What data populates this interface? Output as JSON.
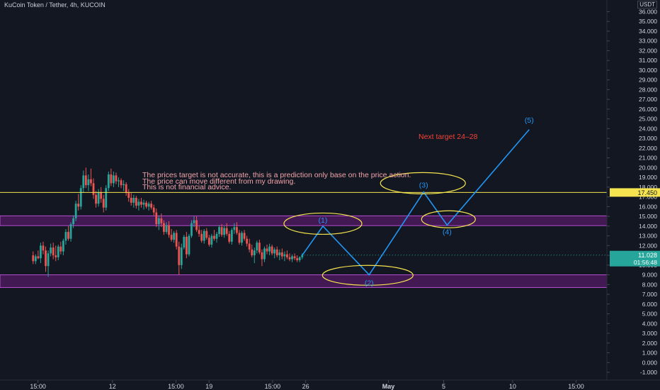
{
  "header": {
    "title": "KuCoin Token / Tether, 4h, KUCOIN",
    "currency": "USDT"
  },
  "annotations": {
    "disclaimer": [
      "The prices target is not accurate, this is a prediction only base on the price action.",
      "The price can move different from my drawing.",
      "This is not financial advice."
    ],
    "next_target": "Next target 24–28",
    "wave_labels": [
      "(1)",
      "(2)",
      "(3)",
      "(4)",
      "(5)"
    ]
  },
  "price_labels": {
    "resistance": "17.450",
    "current": "11.028",
    "countdown": "01:56:48"
  },
  "colors": {
    "background": "#131722",
    "up": "#26a69a",
    "down": "#ef5350",
    "zone": "#6a1b7a",
    "resistance_line": "#f5e44f",
    "forecast": "#2196f3",
    "note_text": "#f0a3a8",
    "target_text": "#f44336",
    "ellipse": "#f5e44f",
    "text": "#d1d4dc"
  },
  "chart_data": {
    "type": "candlestick",
    "y_axis": {
      "ticks": [
        "36.000",
        "35.000",
        "34.000",
        "33.000",
        "32.000",
        "31.000",
        "30.000",
        "29.000",
        "28.000",
        "27.000",
        "26.000",
        "25.000",
        "24.000",
        "23.000",
        "22.000",
        "21.000",
        "20.000",
        "19.000",
        "18.000",
        "17.000",
        "16.000",
        "15.000",
        "14.000",
        "13.000",
        "12.000",
        "11.000",
        "10.000",
        "9.000",
        "8.000",
        "7.000",
        "6.000",
        "5.000",
        "4.000",
        "3.000",
        "2.000",
        "1.000",
        "0.000",
        "-1.000"
      ],
      "top_cut_label": "3",
      "range": [
        -1.8,
        37.2
      ]
    },
    "x_axis": {
      "labels": [
        "15:00",
        "12",
        "15:00",
        "19",
        "15:00",
        "26",
        "May",
        "5",
        "10",
        "15:00"
      ],
      "bold_labels": [
        "May"
      ],
      "positions_days": [
        0.6,
        6,
        10.6,
        13,
        17.6,
        20,
        26,
        30,
        35,
        39.6
      ],
      "range_days": [
        -2.15,
        41.83
      ]
    },
    "zones": [
      [
        14.05,
        15.05
      ],
      [
        7.7,
        9.0
      ]
    ],
    "resistance_line": 17.45,
    "last_price": 11.028,
    "wave_forecast": {
      "points": [
        {
          "label": "",
          "day": 19.75,
          "price": 11.0
        },
        {
          "label": "(1)",
          "day": 21.25,
          "price": 14.0
        },
        {
          "label": "(2)",
          "day": 24.6,
          "price": 9.0
        },
        {
          "label": "(3)",
          "day": 28.55,
          "price": 17.5
        },
        {
          "label": "(4)",
          "day": 30.25,
          "price": 14.1
        },
        {
          "label": "(5)",
          "day": 36.2,
          "price": 23.9
        }
      ]
    },
    "candles": [
      {
        "o": 11.0,
        "h": 11.4,
        "l": 10.1,
        "c": 10.4
      },
      {
        "o": 10.4,
        "h": 11.1,
        "l": 10.1,
        "c": 10.9
      },
      {
        "o": 10.9,
        "h": 11.5,
        "l": 10.6,
        "c": 10.7
      },
      {
        "o": 10.7,
        "h": 12.3,
        "l": 10.2,
        "c": 12.0
      },
      {
        "o": 12.0,
        "h": 12.4,
        "l": 11.1,
        "c": 11.5
      },
      {
        "o": 11.5,
        "h": 11.9,
        "l": 9.3,
        "c": 9.9
      },
      {
        "o": 9.9,
        "h": 11.5,
        "l": 8.8,
        "c": 11.2
      },
      {
        "o": 11.2,
        "h": 12.2,
        "l": 10.9,
        "c": 11.8
      },
      {
        "o": 11.8,
        "h": 12.3,
        "l": 10.6,
        "c": 11.0
      },
      {
        "o": 11.0,
        "h": 12.0,
        "l": 10.4,
        "c": 10.8
      },
      {
        "o": 10.8,
        "h": 12.1,
        "l": 10.5,
        "c": 11.9
      },
      {
        "o": 11.9,
        "h": 12.4,
        "l": 11.1,
        "c": 11.4
      },
      {
        "o": 11.4,
        "h": 12.7,
        "l": 11.0,
        "c": 12.5
      },
      {
        "o": 12.5,
        "h": 13.7,
        "l": 12.1,
        "c": 13.4
      },
      {
        "o": 13.4,
        "h": 14.0,
        "l": 12.5,
        "c": 12.7
      },
      {
        "o": 12.7,
        "h": 14.4,
        "l": 12.4,
        "c": 14.2
      },
      {
        "o": 14.2,
        "h": 15.1,
        "l": 13.8,
        "c": 14.8
      },
      {
        "o": 14.8,
        "h": 16.6,
        "l": 14.5,
        "c": 16.3
      },
      {
        "o": 16.3,
        "h": 17.3,
        "l": 15.6,
        "c": 16.0
      },
      {
        "o": 16.0,
        "h": 18.2,
        "l": 15.7,
        "c": 17.9
      },
      {
        "o": 17.9,
        "h": 19.7,
        "l": 17.4,
        "c": 19.2
      },
      {
        "o": 19.2,
        "h": 20.0,
        "l": 17.9,
        "c": 18.2
      },
      {
        "o": 18.2,
        "h": 19.3,
        "l": 17.6,
        "c": 18.8
      },
      {
        "o": 18.8,
        "h": 19.9,
        "l": 18.1,
        "c": 18.4
      },
      {
        "o": 18.4,
        "h": 18.9,
        "l": 16.8,
        "c": 17.2
      },
      {
        "o": 17.2,
        "h": 17.6,
        "l": 15.9,
        "c": 16.3
      },
      {
        "o": 16.3,
        "h": 17.8,
        "l": 16.0,
        "c": 17.5
      },
      {
        "o": 17.5,
        "h": 18.0,
        "l": 16.4,
        "c": 16.8
      },
      {
        "o": 16.8,
        "h": 17.2,
        "l": 15.4,
        "c": 15.9
      },
      {
        "o": 15.9,
        "h": 18.2,
        "l": 15.6,
        "c": 17.9
      },
      {
        "o": 17.9,
        "h": 19.6,
        "l": 17.6,
        "c": 19.3
      },
      {
        "o": 19.3,
        "h": 19.9,
        "l": 18.1,
        "c": 18.4
      },
      {
        "o": 18.4,
        "h": 19.6,
        "l": 18.0,
        "c": 19.2
      },
      {
        "o": 19.2,
        "h": 19.5,
        "l": 18.3,
        "c": 18.6
      },
      {
        "o": 18.6,
        "h": 19.0,
        "l": 18.0,
        "c": 18.7
      },
      {
        "o": 18.7,
        "h": 18.9,
        "l": 17.9,
        "c": 18.2
      },
      {
        "o": 18.2,
        "h": 18.7,
        "l": 17.6,
        "c": 18.3
      },
      {
        "o": 18.3,
        "h": 18.5,
        "l": 17.1,
        "c": 17.4
      },
      {
        "o": 17.4,
        "h": 17.8,
        "l": 16.5,
        "c": 16.9
      },
      {
        "o": 16.9,
        "h": 17.4,
        "l": 16.1,
        "c": 16.4
      },
      {
        "o": 16.4,
        "h": 17.2,
        "l": 15.9,
        "c": 16.9
      },
      {
        "o": 16.9,
        "h": 17.1,
        "l": 15.8,
        "c": 16.1
      },
      {
        "o": 16.1,
        "h": 16.8,
        "l": 15.6,
        "c": 16.5
      },
      {
        "o": 16.5,
        "h": 16.9,
        "l": 15.9,
        "c": 16.2
      },
      {
        "o": 16.2,
        "h": 16.7,
        "l": 15.7,
        "c": 16.4
      },
      {
        "o": 16.4,
        "h": 16.6,
        "l": 15.8,
        "c": 16.0
      },
      {
        "o": 16.0,
        "h": 16.5,
        "l": 15.6,
        "c": 16.3
      },
      {
        "o": 16.3,
        "h": 16.6,
        "l": 15.7,
        "c": 15.9
      },
      {
        "o": 15.9,
        "h": 16.2,
        "l": 15.1,
        "c": 15.4
      },
      {
        "o": 15.4,
        "h": 15.8,
        "l": 13.9,
        "c": 14.2
      },
      {
        "o": 14.2,
        "h": 15.1,
        "l": 13.6,
        "c": 14.8
      },
      {
        "o": 14.8,
        "h": 15.3,
        "l": 13.9,
        "c": 14.3
      },
      {
        "o": 14.3,
        "h": 14.6,
        "l": 13.1,
        "c": 13.4
      },
      {
        "o": 13.4,
        "h": 14.4,
        "l": 13.2,
        "c": 14.1
      },
      {
        "o": 14.1,
        "h": 14.5,
        "l": 12.8,
        "c": 13.1
      },
      {
        "o": 13.1,
        "h": 13.7,
        "l": 12.4,
        "c": 12.6
      },
      {
        "o": 12.6,
        "h": 13.5,
        "l": 12.3,
        "c": 13.3
      },
      {
        "o": 13.3,
        "h": 13.6,
        "l": 11.6,
        "c": 11.9
      },
      {
        "o": 11.9,
        "h": 12.4,
        "l": 9.0,
        "c": 10.0
      },
      {
        "o": 10.0,
        "h": 12.2,
        "l": 9.6,
        "c": 11.8
      },
      {
        "o": 11.8,
        "h": 13.1,
        "l": 11.6,
        "c": 12.9
      },
      {
        "o": 12.9,
        "h": 13.4,
        "l": 10.7,
        "c": 11.1
      },
      {
        "o": 11.1,
        "h": 13.2,
        "l": 10.9,
        "c": 13.0
      },
      {
        "o": 13.0,
        "h": 14.6,
        "l": 12.8,
        "c": 14.3
      },
      {
        "o": 14.3,
        "h": 15.0,
        "l": 13.9,
        "c": 14.6
      },
      {
        "o": 14.6,
        "h": 15.0,
        "l": 13.4,
        "c": 13.6
      },
      {
        "o": 13.6,
        "h": 14.0,
        "l": 12.9,
        "c": 13.2
      },
      {
        "o": 13.2,
        "h": 13.6,
        "l": 12.3,
        "c": 12.5
      },
      {
        "o": 12.5,
        "h": 13.7,
        "l": 12.2,
        "c": 13.5
      },
      {
        "o": 13.5,
        "h": 13.8,
        "l": 12.6,
        "c": 12.8
      },
      {
        "o": 12.8,
        "h": 13.1,
        "l": 11.9,
        "c": 12.1
      },
      {
        "o": 12.1,
        "h": 13.2,
        "l": 11.8,
        "c": 13.0
      },
      {
        "o": 13.0,
        "h": 13.6,
        "l": 12.5,
        "c": 12.7
      },
      {
        "o": 12.7,
        "h": 13.4,
        "l": 12.3,
        "c": 13.2
      },
      {
        "o": 13.2,
        "h": 14.1,
        "l": 12.9,
        "c": 13.9
      },
      {
        "o": 13.9,
        "h": 14.2,
        "l": 12.9,
        "c": 13.1
      },
      {
        "o": 13.1,
        "h": 14.0,
        "l": 12.8,
        "c": 13.8
      },
      {
        "o": 13.8,
        "h": 14.3,
        "l": 13.0,
        "c": 13.2
      },
      {
        "o": 13.2,
        "h": 13.5,
        "l": 12.2,
        "c": 12.4
      },
      {
        "o": 12.4,
        "h": 13.8,
        "l": 12.1,
        "c": 13.6
      },
      {
        "o": 13.6,
        "h": 14.3,
        "l": 13.2,
        "c": 13.9
      },
      {
        "o": 13.9,
        "h": 14.4,
        "l": 13.1,
        "c": 13.3
      },
      {
        "o": 13.3,
        "h": 13.6,
        "l": 12.1,
        "c": 12.3
      },
      {
        "o": 12.3,
        "h": 13.5,
        "l": 12.0,
        "c": 13.3
      },
      {
        "o": 13.3,
        "h": 13.6,
        "l": 12.5,
        "c": 12.7
      },
      {
        "o": 12.7,
        "h": 13.0,
        "l": 11.9,
        "c": 12.2
      },
      {
        "o": 12.2,
        "h": 12.7,
        "l": 11.3,
        "c": 11.6
      },
      {
        "o": 11.6,
        "h": 12.1,
        "l": 10.8,
        "c": 11.0
      },
      {
        "o": 11.0,
        "h": 11.8,
        "l": 10.2,
        "c": 11.5
      },
      {
        "o": 11.5,
        "h": 12.5,
        "l": 11.2,
        "c": 12.3
      },
      {
        "o": 12.3,
        "h": 12.6,
        "l": 11.1,
        "c": 11.3
      },
      {
        "o": 11.3,
        "h": 11.6,
        "l": 9.9,
        "c": 10.6
      },
      {
        "o": 10.6,
        "h": 11.9,
        "l": 10.3,
        "c": 11.7
      },
      {
        "o": 11.7,
        "h": 12.1,
        "l": 11.1,
        "c": 11.4
      },
      {
        "o": 11.4,
        "h": 12.2,
        "l": 11.0,
        "c": 11.9
      },
      {
        "o": 11.9,
        "h": 12.1,
        "l": 11.0,
        "c": 11.2
      },
      {
        "o": 11.2,
        "h": 11.8,
        "l": 10.7,
        "c": 11.6
      },
      {
        "o": 11.6,
        "h": 11.9,
        "l": 10.8,
        "c": 11.0
      },
      {
        "o": 11.0,
        "h": 11.6,
        "l": 10.5,
        "c": 11.3
      },
      {
        "o": 11.3,
        "h": 11.7,
        "l": 10.6,
        "c": 10.9
      },
      {
        "o": 10.9,
        "h": 11.4,
        "l": 10.4,
        "c": 11.1
      },
      {
        "o": 11.1,
        "h": 11.5,
        "l": 10.6,
        "c": 10.8
      },
      {
        "o": 10.8,
        "h": 11.2,
        "l": 10.4,
        "c": 10.6
      },
      {
        "o": 10.6,
        "h": 11.1,
        "l": 10.3,
        "c": 10.9
      },
      {
        "o": 10.9,
        "h": 11.2,
        "l": 10.5,
        "c": 10.7
      },
      {
        "o": 10.7,
        "h": 11.0,
        "l": 10.3,
        "c": 10.5
      },
      {
        "o": 10.5,
        "h": 10.9,
        "l": 10.3,
        "c": 10.8
      },
      {
        "o": 10.8,
        "h": 11.2,
        "l": 10.6,
        "c": 11.03
      }
    ]
  }
}
